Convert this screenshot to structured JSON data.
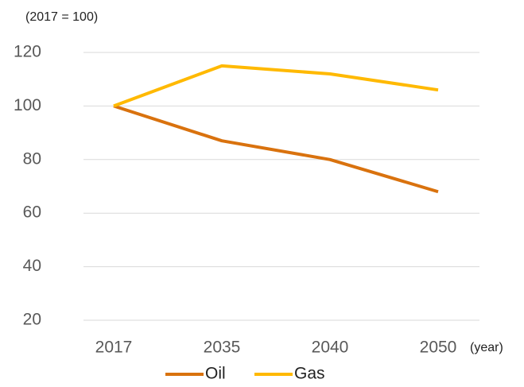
{
  "chart_data": {
    "type": "line",
    "annotation": "(2017 = 100)",
    "x_label": "(year)",
    "categories": [
      "2017",
      "2035",
      "2040",
      "2050"
    ],
    "series": [
      {
        "name": "Oil",
        "color": "#d9720e",
        "values": [
          100,
          87,
          80,
          68
        ]
      },
      {
        "name": "Gas",
        "color": "#ffb900",
        "values": [
          100,
          115,
          112,
          106
        ]
      }
    ],
    "ylim": [
      20,
      120
    ],
    "yticks": [
      20,
      40,
      60,
      80,
      100,
      120
    ],
    "grid": true,
    "legend": "bottom"
  }
}
